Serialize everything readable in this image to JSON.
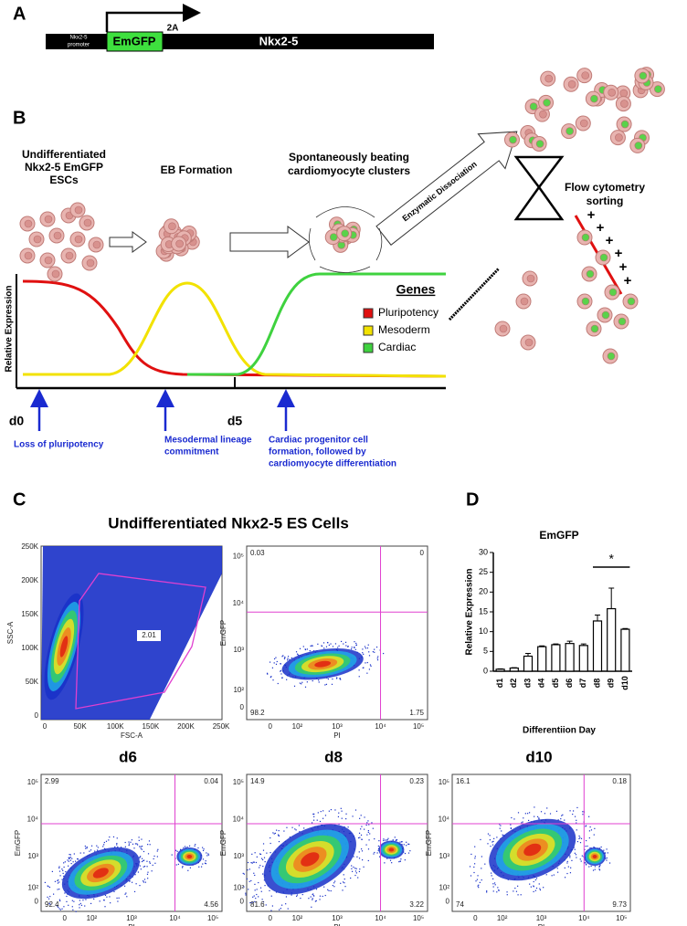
{
  "panel_a": {
    "label": "A",
    "promoter": [
      "Nkx2-5",
      "promoter"
    ],
    "reporter": "EmGFP",
    "linker": "2A",
    "gene": "Nkx2-5"
  },
  "panel_b": {
    "label": "B",
    "stage_1": [
      "Undifferentiated",
      "Nkx2-5 EmGFP",
      "ESCs"
    ],
    "stage_2": "EB Formation",
    "stage_3": [
      "Spontaneously beating",
      "cardiomyocyte clusters"
    ],
    "dissociation": "Enzymatic Dissociation",
    "sorting": [
      "Flow cytometry",
      "sorting"
    ],
    "sort_sign": "+",
    "y_label": "Relative Expression",
    "legend_title": "Genes",
    "legend": [
      {
        "name": "Pluripotency",
        "color": "#e01010"
      },
      {
        "name": "Mesoderm",
        "color": "#f2e200"
      },
      {
        "name": "Cardiac",
        "color": "#3fd23f"
      }
    ],
    "day_start": "d0",
    "day_mid": "d5",
    "events": [
      [
        "Loss of pluripotency"
      ],
      [
        "Mesodermal lineage",
        "commitment"
      ],
      [
        "Cardiac progenitor cell",
        "formation, followed by",
        "cardiomyocyte differentiation"
      ]
    ]
  },
  "panel_c": {
    "label": "C",
    "title": "Undifferentiated Nkx2-5 ES Cells",
    "gate_plot": {
      "x_label": "FSC-A",
      "y_label": "SSC-A",
      "ticks": [
        "0",
        "50K",
        "100K",
        "150K",
        "200K",
        "250K"
      ],
      "gate": "2.01"
    },
    "x_label": "PI",
    "y_label": "EmGFP",
    "log_xticks": [
      "0",
      "10²",
      "10³",
      "10⁴",
      "10⁵"
    ],
    "log_yticks": [
      "10⁵",
      "10⁴",
      "10³",
      "10²",
      "0"
    ],
    "undifferentiated_quadrants": [
      "0.03",
      "0",
      "98.2",
      "1.75"
    ],
    "day_plots": [
      {
        "title": "d6",
        "quadrants": [
          "2.99",
          "0.04",
          "92.4",
          "4.56"
        ]
      },
      {
        "title": "d8",
        "quadrants": [
          "14.9",
          "0.23",
          "81.6",
          "3.22"
        ]
      },
      {
        "title": "d10",
        "quadrants": [
          "16.1",
          "0.18",
          "74",
          "9.73"
        ]
      }
    ]
  },
  "panel_d": {
    "label": "D",
    "type": "bar",
    "title": "EmGFP",
    "x_label": "Differentiion Day",
    "y_label": "Relative Expression",
    "categories": [
      "d1",
      "d2",
      "d3",
      "d4",
      "d5",
      "d6",
      "d7",
      "d8",
      "d9",
      "d10"
    ],
    "values": [
      0.5,
      0.8,
      3.8,
      6.2,
      6.7,
      7.0,
      6.5,
      12.7,
      15.8,
      10.6
    ],
    "errors": [
      0.1,
      0.1,
      0.7,
      0.2,
      0.2,
      0.6,
      0.4,
      1.5,
      5.2,
      0.2
    ],
    "ylim": [
      0,
      30
    ],
    "yticks": [
      0,
      5,
      10,
      15,
      20,
      25,
      30
    ],
    "significance": "*",
    "color": "#ffffff"
  }
}
